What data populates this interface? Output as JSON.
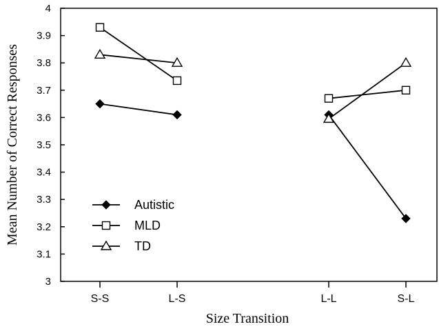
{
  "chart_data": {
    "type": "line",
    "xlabel": "Size Transition",
    "ylabel": "Mean Number of Correct Responses",
    "ylim": [
      3,
      4
    ],
    "yticks": [
      "3",
      "3.1",
      "3.2",
      "3.3",
      "3.4",
      "3.5",
      "3.6",
      "3.7",
      "3.8",
      "3.9",
      "4"
    ],
    "categories": [
      "S-S",
      "L-S",
      "L-L",
      "S-L"
    ],
    "segments": [
      [
        "S-S",
        "L-S"
      ],
      [
        "L-L",
        "S-L"
      ]
    ],
    "grid": false,
    "legend_position": "bottom-left",
    "series": [
      {
        "name": "Autistic",
        "marker": "diamond-filled",
        "values": [
          3.65,
          3.61,
          3.61,
          3.23
        ]
      },
      {
        "name": "MLD",
        "marker": "square-open",
        "values": [
          3.93,
          3.735,
          3.67,
          3.7
        ]
      },
      {
        "name": "TD",
        "marker": "triangle-open",
        "values": [
          3.83,
          3.8,
          3.595,
          3.8
        ]
      }
    ]
  }
}
